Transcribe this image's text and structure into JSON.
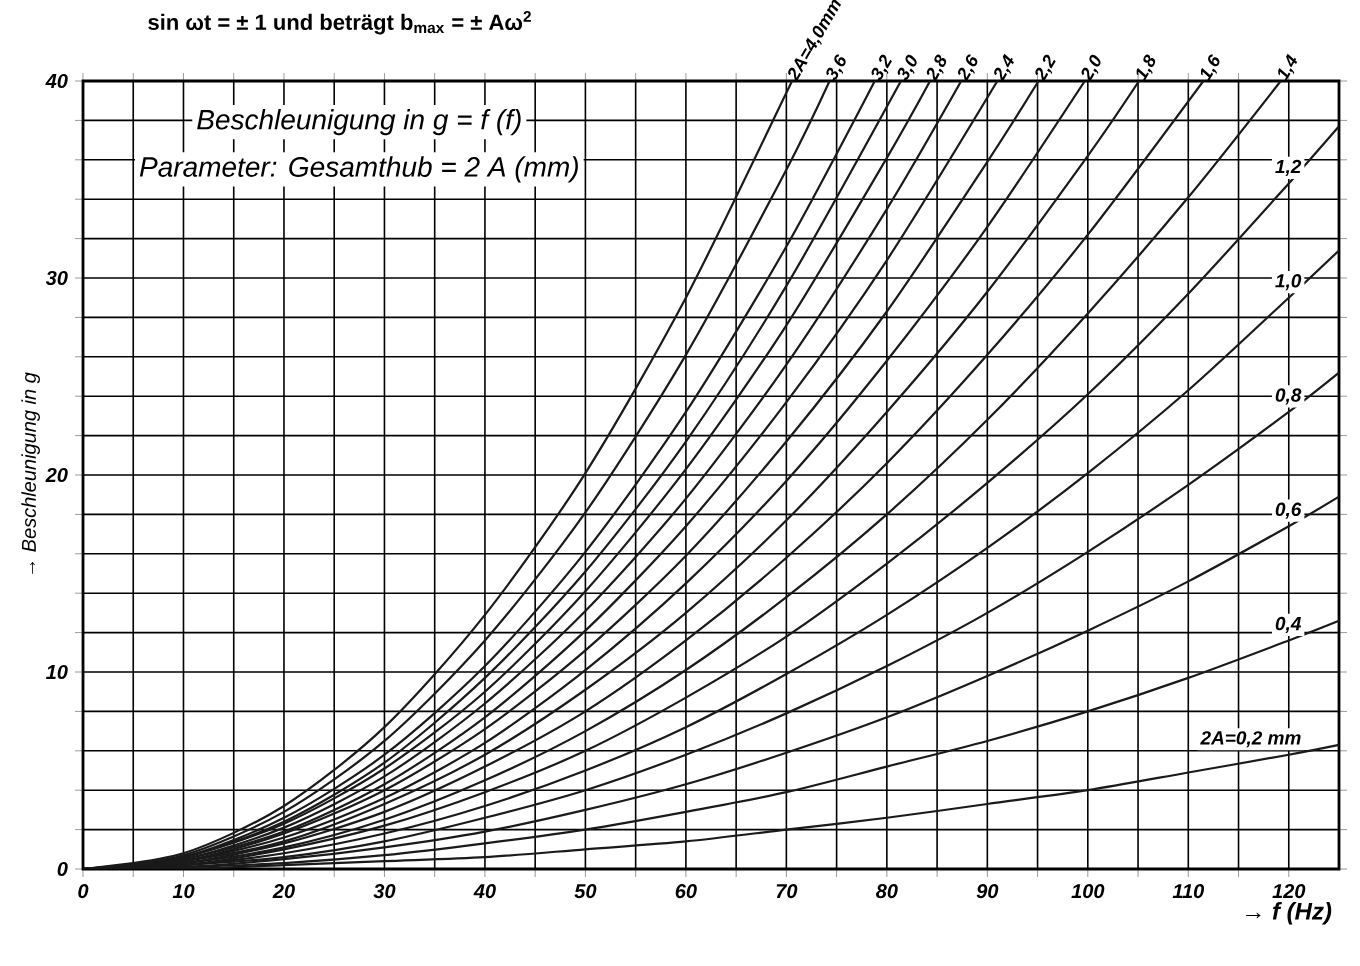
{
  "chart_data": {
    "type": "line",
    "title": "Beschleunigung in g = f (f)",
    "subtitle": "Parameter: Gesamthub = 2 A (mm)",
    "annotations": [
      "sin ωt = ± 1 und beträgt b$_{max}$ = ± Aω$^{2}$"
    ],
    "xlabel": "→ f (Hz)",
    "ylabel": "→ Beschleunigung in g",
    "xlim": [
      0,
      125
    ],
    "ylim": [
      0,
      40
    ],
    "xticks": [
      0,
      {
        "value": 5,
        "label": null
      },
      10,
      {
        "value": 15,
        "label": null
      },
      20,
      {
        "value": 25,
        "label": null
      },
      30,
      {
        "value": 35,
        "label": null
      },
      40,
      {
        "value": 45,
        "label": null
      },
      50,
      {
        "value": 55,
        "label": null
      },
      60,
      {
        "value": 65,
        "label": null
      },
      70,
      {
        "value": 75,
        "label": null
      },
      80,
      {
        "value": 85,
        "label": null
      },
      90,
      {
        "value": 95,
        "label": null
      },
      100,
      {
        "value": 105,
        "label": null
      },
      110,
      {
        "value": 115,
        "label": null
      },
      120
    ],
    "yticks": [
      0,
      {
        "value": 2,
        "label": null
      },
      {
        "value": 4,
        "label": null
      },
      {
        "value": 6,
        "label": null
      },
      {
        "value": 8,
        "label": null
      },
      10,
      {
        "value": 12,
        "label": null
      },
      {
        "value": 14,
        "label": null
      },
      {
        "value": 16,
        "label": null
      },
      {
        "value": 18,
        "label": null
      },
      20,
      {
        "value": 22,
        "label": null
      },
      {
        "value": 24,
        "label": null
      },
      {
        "value": 26,
        "label": null
      },
      {
        "value": 28,
        "label": null
      },
      30,
      {
        "value": 32,
        "label": null
      },
      {
        "value": 34,
        "label": null
      },
      {
        "value": 36,
        "label": null
      },
      {
        "value": 38,
        "label": null
      },
      40
    ],
    "grid": true,
    "line_style": "solid",
    "series": [
      {
        "name": "2A=0,2 mm",
        "color": "#1a1a1a",
        "x": [
          0,
          10,
          20,
          30,
          40,
          50,
          60,
          70,
          80,
          90,
          100,
          110,
          120,
          125
        ],
        "values": [
          0,
          0,
          0.2,
          0.4,
          0.6,
          1.0,
          1.4,
          2.0,
          2.6,
          3.3,
          4.0,
          4.9,
          5.8,
          6.3
        ]
      },
      {
        "name": "0,4",
        "color": "#1a1a1a",
        "x": [
          0,
          10,
          20,
          30,
          40,
          50,
          60,
          70,
          80,
          90,
          100,
          110,
          120,
          125
        ],
        "values": [
          0,
          0.1,
          0.3,
          0.7,
          1.3,
          2.0,
          2.9,
          3.9,
          5.2,
          6.5,
          8.0,
          9.7,
          11.6,
          12.6
        ]
      },
      {
        "name": "0,6",
        "color": "#1a1a1a",
        "x": [
          0,
          10,
          20,
          30,
          40,
          50,
          60,
          70,
          80,
          90,
          100,
          110,
          120,
          125
        ],
        "values": [
          0,
          0.1,
          0.5,
          1.1,
          1.9,
          3.0,
          4.3,
          5.9,
          7.7,
          9.8,
          12.1,
          14.6,
          17.4,
          18.9
        ]
      },
      {
        "name": "0,8",
        "color": "#1a1a1a",
        "x": [
          0,
          10,
          20,
          30,
          40,
          50,
          60,
          70,
          80,
          90,
          100,
          110,
          120,
          125
        ],
        "values": [
          0,
          0.2,
          0.6,
          1.4,
          2.6,
          4.0,
          5.8,
          7.9,
          10.3,
          13.0,
          16.1,
          19.5,
          23.2,
          25.2
        ]
      },
      {
        "name": "1,0",
        "color": "#1a1a1a",
        "x": [
          0,
          10,
          20,
          30,
          40,
          50,
          60,
          70,
          80,
          90,
          100,
          110,
          120,
          125
        ],
        "values": [
          0,
          0.2,
          0.8,
          1.8,
          3.2,
          5.0,
          7.2,
          9.9,
          12.9,
          16.3,
          20.1,
          24.3,
          29.0,
          31.4
        ]
      },
      {
        "name": "1,2",
        "color": "#1a1a1a",
        "x": [
          0,
          10,
          20,
          30,
          40,
          50,
          60,
          70,
          80,
          90,
          100,
          110,
          120,
          125
        ],
        "values": [
          0,
          0.2,
          1.0,
          2.2,
          3.9,
          6.0,
          8.7,
          11.8,
          15.5,
          19.6,
          24.1,
          29.2,
          34.8,
          37.7
        ]
      },
      {
        "name": "1,4",
        "color": "#1a1a1a",
        "x": [
          0,
          10,
          20,
          30,
          40,
          50,
          60,
          70,
          80,
          90,
          100,
          110,
          119.2
        ],
        "values": [
          0,
          0.3,
          1.1,
          2.5,
          4.5,
          7.0,
          10.1,
          13.8,
          18.0,
          22.8,
          28.2,
          34.1,
          40
        ]
      },
      {
        "name": "1,6",
        "color": "#1a1a1a",
        "x": [
          0,
          10,
          20,
          30,
          40,
          50,
          60,
          70,
          80,
          90,
          100,
          111.5
        ],
        "values": [
          0,
          0.3,
          1.3,
          2.9,
          5.2,
          8.0,
          11.6,
          15.8,
          20.6,
          26.1,
          32.2,
          40
        ]
      },
      {
        "name": "1,8",
        "color": "#1a1a1a",
        "x": [
          0,
          10,
          20,
          30,
          40,
          50,
          60,
          70,
          80,
          90,
          100,
          105.1
        ],
        "values": [
          0,
          0.4,
          1.4,
          3.3,
          5.8,
          9.1,
          13.0,
          17.7,
          23.2,
          29.3,
          36.2,
          40
        ]
      },
      {
        "name": "2,0",
        "color": "#1a1a1a",
        "x": [
          0,
          10,
          20,
          30,
          40,
          50,
          60,
          70,
          80,
          90,
          99.7
        ],
        "values": [
          0,
          0.4,
          1.6,
          3.6,
          6.4,
          10.1,
          14.5,
          19.7,
          25.8,
          32.6,
          40
        ]
      },
      {
        "name": "2,2",
        "color": "#1a1a1a",
        "x": [
          0,
          10,
          20,
          30,
          40,
          50,
          60,
          70,
          80,
          90,
          95.1
        ],
        "values": [
          0,
          0.4,
          1.8,
          4.0,
          7.1,
          11.1,
          15.9,
          21.7,
          28.3,
          35.9,
          40
        ]
      },
      {
        "name": "2,4",
        "color": "#1a1a1a",
        "x": [
          0,
          10,
          20,
          30,
          40,
          50,
          60,
          70,
          80,
          91.0
        ],
        "values": [
          0,
          0.5,
          1.9,
          4.3,
          7.7,
          12.1,
          17.4,
          23.7,
          30.9,
          40
        ]
      },
      {
        "name": "2,6",
        "color": "#1a1a1a",
        "x": [
          0,
          10,
          20,
          30,
          40,
          50,
          60,
          70,
          80,
          87.4
        ],
        "values": [
          0,
          0.5,
          2.1,
          4.7,
          8.4,
          13.1,
          18.8,
          25.6,
          33.5,
          40
        ]
      },
      {
        "name": "2,8",
        "color": "#1a1a1a",
        "x": [
          0,
          10,
          20,
          30,
          40,
          50,
          60,
          70,
          80,
          84.3
        ],
        "values": [
          0,
          0.6,
          2.3,
          5.1,
          9.0,
          14.1,
          20.3,
          27.6,
          36.1,
          40
        ]
      },
      {
        "name": "3,0",
        "color": "#1a1a1a",
        "x": [
          0,
          10,
          20,
          30,
          40,
          50,
          60,
          70,
          81.4
        ],
        "values": [
          0,
          0.6,
          2.4,
          5.4,
          9.7,
          15.1,
          21.7,
          29.6,
          40
        ]
      },
      {
        "name": "3,2",
        "color": "#1a1a1a",
        "x": [
          0,
          10,
          20,
          30,
          40,
          50,
          60,
          70,
          78.8
        ],
        "values": [
          0,
          0.6,
          2.6,
          5.8,
          10.3,
          16.1,
          23.2,
          31.6,
          40
        ]
      },
      {
        "name": "3,6",
        "color": "#1a1a1a",
        "x": [
          0,
          10,
          20,
          30,
          40,
          50,
          60,
          70,
          74.3
        ],
        "values": [
          0,
          0.7,
          2.9,
          6.5,
          11.6,
          18.1,
          26.1,
          35.5,
          40
        ]
      },
      {
        "name": "2A=4,0mm",
        "color": "#1a1a1a",
        "x": [
          0,
          10,
          20,
          30,
          40,
          50,
          60,
          70,
          70.5
        ],
        "values": [
          0,
          0.8,
          3.2,
          7.2,
          12.9,
          20.1,
          29.0,
          39.4,
          40
        ]
      }
    ]
  }
}
